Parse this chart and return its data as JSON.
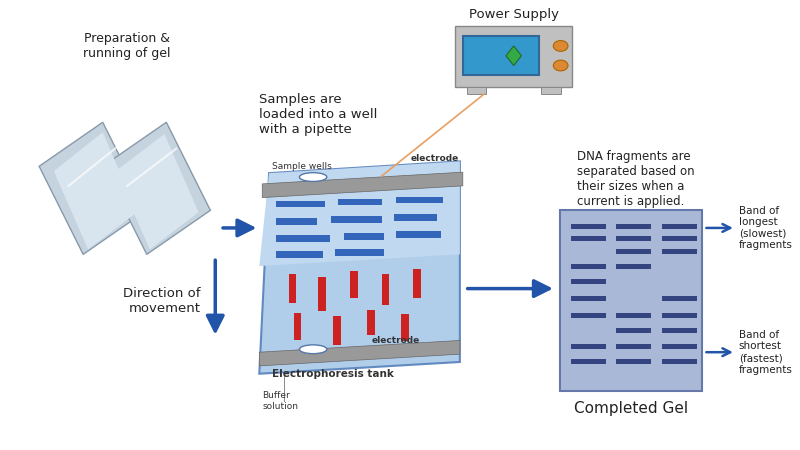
{
  "bg_color": "#ffffff",
  "gel_plate_color_light": "#c8d4e0",
  "gel_plate_color_dark": "#8899aa",
  "gel_plate_edge": "#8899aa",
  "gel_tank_fill": "#a8c8e8",
  "gel_tank_lighter": "#c0d8f0",
  "electrode_color": "#999999",
  "band_blue": "#1a4a99",
  "band_blue_light": "#3366bb",
  "band_red": "#cc2222",
  "completed_gel_bg": "#aab8d8",
  "completed_gel_band": "#334480",
  "power_supply_body": "#c0c0c0",
  "power_supply_screen": "#3399cc",
  "power_supply_btn": "#dd8833",
  "power_supply_diamond": "#33aa44",
  "arrow_blue": "#2255aa",
  "arrow_orange": "#e8a060",
  "text_dark": "#222222",
  "text_small": "#333333",
  "prep_text": "Preparation &\nrunning of gel",
  "samples_text": "Samples are\nloaded into a well\nwith a pipette",
  "dna_text": "DNA fragments are\nseparated based on\ntheir sizes when a\ncurrent is applied.",
  "direction_text": "Direction of\nmovement",
  "completed_gel_text": "Completed Gel",
  "band_longest_text": "Band of\nlongest\n(slowest)\nfragments",
  "band_shortest_text": "Band of\nshortest\n(fastest)\nfragments",
  "sample_wells_text": "Sample wells",
  "electrode_text": "electrode",
  "buffer_text": "Buffer\nsolution",
  "tank_text": "Electrophoresis tank",
  "power_supply_text": "Power Supply"
}
